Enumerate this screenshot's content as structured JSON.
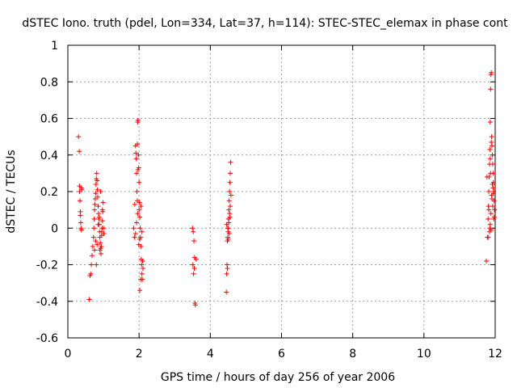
{
  "chart_data": {
    "type": "scatter",
    "title": "dSTEC Iono. truth (pdel, Lon=334, Lat=37, h=114): STEC-STEC_elemax in phase cont",
    "xlabel": "GPS time / hours of day 256 of year 2006",
    "ylabel": "dSTEC  / TECUs",
    "xlim": [
      0,
      12
    ],
    "ylim": [
      -0.6,
      1
    ],
    "xticks": [
      "0",
      "2",
      "4",
      "6",
      "8",
      "10",
      "12"
    ],
    "yticks": [
      "-0.6",
      "-0.4",
      "-0.2",
      "0",
      "0.2",
      "0.4",
      "0.6",
      "0.8",
      "1"
    ],
    "grid": true,
    "marker": "+",
    "color": "#ff0000",
    "series": [
      {
        "x": [
          0.3,
          0.32,
          0.33,
          0.33,
          0.34,
          0.35,
          0.35,
          0.36,
          0.37,
          0.38,
          0.38,
          0.39,
          0.6,
          0.62,
          0.64,
          0.66,
          0.68,
          0.7,
          0.72,
          0.73,
          0.74,
          0.75,
          0.76,
          0.77,
          0.78,
          0.79,
          0.8,
          0.81,
          0.82,
          0.83,
          0.84,
          0.85,
          0.86,
          0.87,
          0.88,
          0.89,
          0.9,
          0.91,
          0.92,
          0.93,
          0.94,
          0.95,
          0.96,
          0.97,
          0.98,
          0.99,
          1.0,
          1.01,
          0.75,
          0.78,
          0.8,
          0.82,
          0.85,
          0.88,
          0.9,
          0.92,
          0.95,
          0.97,
          1.85,
          1.87,
          1.88,
          1.9,
          1.91,
          1.92,
          1.93,
          1.94,
          1.95,
          1.96,
          1.97,
          1.98,
          1.99,
          2.0,
          2.01,
          2.02,
          2.03,
          2.04,
          2.05,
          2.06,
          2.07,
          2.08,
          2.09,
          2.1,
          2.11,
          1.95,
          1.97,
          2.0,
          2.02,
          2.05,
          1.9,
          1.93,
          1.96,
          1.99,
          2.02,
          2.05,
          2.08,
          3.5,
          3.52,
          3.54,
          3.56,
          3.57,
          3.58,
          3.6,
          3.55,
          3.53,
          3.51,
          4.45,
          4.46,
          4.47,
          4.48,
          4.49,
          4.5,
          4.51,
          4.52,
          4.53,
          4.54,
          4.55,
          4.56,
          4.57,
          4.58,
          4.48,
          4.5,
          4.52,
          4.54,
          4.46,
          4.56,
          4.5,
          4.53,
          4.55,
          4.49,
          11.75,
          11.77,
          11.78,
          11.8,
          11.81,
          11.82,
          11.83,
          11.84,
          11.85,
          11.86,
          11.87,
          11.88,
          11.89,
          11.9,
          11.91,
          11.92,
          11.93,
          11.94,
          11.95,
          11.96,
          11.97,
          11.98,
          11.84,
          11.86,
          11.88,
          11.9,
          11.92,
          11.94,
          11.96,
          11.8,
          11.82,
          11.85,
          11.87,
          11.89,
          11.91,
          11.93,
          11.95,
          11.97,
          11.86,
          11.88
        ],
        "y": [
          0.5,
          0.42,
          0.23,
          0.2,
          0.15,
          0.09,
          0.07,
          0.03,
          0.0,
          -0.01,
          0.22,
          0.21,
          -0.39,
          -0.26,
          -0.25,
          -0.2,
          -0.15,
          -0.1,
          -0.05,
          0.0,
          0.05,
          0.1,
          0.13,
          0.16,
          0.19,
          0.24,
          0.27,
          0.3,
          0.26,
          0.21,
          0.17,
          0.12,
          0.08,
          0.05,
          0.02,
          -0.02,
          -0.05,
          -0.08,
          -0.11,
          -0.14,
          -0.1,
          -0.04,
          0.0,
          0.04,
          0.09,
          0.14,
          0.0,
          -0.03,
          -0.12,
          -0.07,
          -0.2,
          -0.09,
          0.02,
          0.06,
          -0.12,
          0.2,
          -0.02,
          0.1,
          0.0,
          -0.05,
          0.13,
          0.45,
          0.41,
          0.38,
          0.3,
          0.2,
          0.15,
          0.58,
          0.59,
          0.4,
          0.33,
          0.25,
          0.14,
          0.06,
          0.0,
          -0.05,
          -0.1,
          -0.17,
          -0.2,
          -0.25,
          -0.28,
          -0.18,
          -0.22,
          0.46,
          0.32,
          0.1,
          -0.34,
          -0.28,
          -0.03,
          0.03,
          0.08,
          -0.09,
          -0.06,
          0.12,
          -0.02,
          0.0,
          -0.02,
          -0.07,
          -0.16,
          -0.41,
          -0.42,
          -0.17,
          -0.22,
          -0.25,
          -0.2,
          -0.35,
          -0.25,
          -0.2,
          -0.22,
          -0.05,
          0.0,
          0.05,
          0.1,
          0.15,
          0.2,
          0.25,
          0.3,
          0.36,
          0.18,
          -0.07,
          -0.02,
          0.03,
          0.08,
          0.02,
          0.12,
          -0.06,
          -0.03,
          0.06,
          0.0,
          -0.18,
          0.28,
          -0.05,
          0.05,
          0.12,
          0.2,
          0.28,
          0.35,
          0.43,
          0.58,
          0.76,
          0.84,
          0.85,
          0.5,
          0.45,
          0.4,
          0.35,
          0.3,
          0.25,
          0.2,
          0.15,
          0.1,
          -0.02,
          0.02,
          0.08,
          0.18,
          0.24,
          0.22,
          0.05,
          -0.05,
          0.1,
          0.0,
          0.3,
          0.47,
          0.16,
          0.12,
          0.19,
          0.06,
          0.38,
          -0.01
        ]
      }
    ]
  }
}
